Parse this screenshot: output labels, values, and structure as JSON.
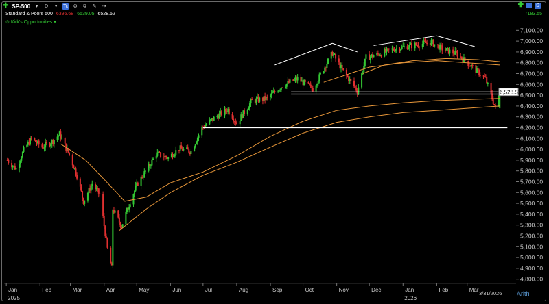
{
  "toolbar": {
    "symbol": "SP-500",
    "period": "D",
    "badge": "Tc",
    "change": "183.55"
  },
  "quote": {
    "name": "Standard & Poors 500",
    "low": "6395.68",
    "high": "6539.05",
    "close": "6528.52"
  },
  "study": "Kirk's Opportunities",
  "price_tag": "6,528.52",
  "scale_mode": "Arith",
  "colors": {
    "up": "#34c934",
    "down": "#e03030",
    "ma": "#e8973a",
    "lines": "#ffffff",
    "axis": "#cccccc"
  },
  "chart_data": {
    "type": "line",
    "title": "Standard & Poors 500",
    "series": [
      {
        "name": "SP-500",
        "style": "ohlc-candles",
        "points": [
          [
            "2025-01-02",
            5900
          ],
          [
            "2025-01-10",
            5820
          ],
          [
            "2025-01-17",
            5990
          ],
          [
            "2025-01-24",
            6100
          ],
          [
            "2025-02-03",
            6020
          ],
          [
            "2025-02-12",
            6070
          ],
          [
            "2025-02-19",
            6140
          ],
          [
            "2025-02-28",
            5950
          ],
          [
            "2025-03-07",
            5760
          ],
          [
            "2025-03-13",
            5520
          ],
          [
            "2025-03-21",
            5680
          ],
          [
            "2025-03-28",
            5580
          ],
          [
            "2025-04-04",
            5080
          ],
          [
            "2025-04-08",
            4900
          ],
          [
            "2025-04-09",
            5450
          ],
          [
            "2025-04-17",
            5290
          ],
          [
            "2025-04-25",
            5520
          ],
          [
            "2025-05-02",
            5690
          ],
          [
            "2025-05-12",
            5840
          ],
          [
            "2025-05-19",
            5960
          ],
          [
            "2025-05-30",
            5920
          ],
          [
            "2025-06-09",
            6010
          ],
          [
            "2025-06-20",
            5980
          ],
          [
            "2025-06-30",
            6200
          ],
          [
            "2025-07-10",
            6280
          ],
          [
            "2025-07-24",
            6370
          ],
          [
            "2025-08-01",
            6240
          ],
          [
            "2025-08-15",
            6450
          ],
          [
            "2025-08-29",
            6470
          ],
          [
            "2025-09-12",
            6590
          ],
          [
            "2025-09-26",
            6650
          ],
          [
            "2025-10-10",
            6560
          ],
          [
            "2025-10-28",
            6890
          ],
          [
            "2025-11-07",
            6720
          ],
          [
            "2025-11-20",
            6540
          ],
          [
            "2025-11-28",
            6850
          ],
          [
            "2025-12-10",
            6880
          ],
          [
            "2025-12-24",
            6930
          ],
          [
            "2026-01-09",
            6960
          ],
          [
            "2026-01-27",
            6990
          ],
          [
            "2026-02-06",
            6930
          ],
          [
            "2026-02-20",
            6880
          ],
          [
            "2026-03-06",
            6760
          ],
          [
            "2026-03-18",
            6650
          ],
          [
            "2026-03-27",
            6380
          ],
          [
            "2026-03-31",
            6528.52
          ]
        ]
      },
      {
        "name": "MA-fast",
        "points": [
          [
            "2025-02-20",
            6050
          ],
          [
            "2025-03-15",
            5900
          ],
          [
            "2025-04-05",
            5680
          ],
          [
            "2025-04-20",
            5520
          ],
          [
            "2025-05-10",
            5560
          ],
          [
            "2025-06-01",
            5690
          ],
          [
            "2025-07-01",
            5790
          ],
          [
            "2025-08-01",
            5940
          ],
          [
            "2025-09-01",
            6120
          ],
          [
            "2025-10-01",
            6260
          ],
          [
            "2025-11-01",
            6360
          ],
          [
            "2025-12-01",
            6400
          ],
          [
            "2026-01-01",
            6430
          ],
          [
            "2026-02-01",
            6450
          ],
          [
            "2026-03-01",
            6460
          ],
          [
            "2026-03-31",
            6470
          ]
        ]
      },
      {
        "name": "MA-slow",
        "points": [
          [
            "2025-04-15",
            5250
          ],
          [
            "2025-05-10",
            5450
          ],
          [
            "2025-06-01",
            5600
          ],
          [
            "2025-07-01",
            5760
          ],
          [
            "2025-08-01",
            5880
          ],
          [
            "2025-09-01",
            6020
          ],
          [
            "2025-10-01",
            6150
          ],
          [
            "2025-11-01",
            6250
          ],
          [
            "2025-12-01",
            6300
          ],
          [
            "2026-01-01",
            6340
          ],
          [
            "2026-02-01",
            6360
          ],
          [
            "2026-03-01",
            6380
          ],
          [
            "2026-03-31",
            6400
          ]
        ]
      },
      {
        "name": "MA-short-1",
        "points": [
          [
            "2025-10-20",
            6620
          ],
          [
            "2025-11-10",
            6690
          ],
          [
            "2025-12-01",
            6760
          ],
          [
            "2026-01-01",
            6800
          ],
          [
            "2026-02-01",
            6820
          ],
          [
            "2026-03-01",
            6800
          ],
          [
            "2026-03-31",
            6780
          ]
        ]
      },
      {
        "name": "MA-short-2",
        "points": [
          [
            "2025-11-25",
            6700
          ],
          [
            "2025-12-15",
            6780
          ],
          [
            "2026-01-10",
            6820
          ],
          [
            "2026-02-10",
            6840
          ],
          [
            "2026-03-10",
            6830
          ],
          [
            "2026-03-31",
            6810
          ]
        ]
      }
    ],
    "trendlines": [
      {
        "from": [
          "2025-09-05",
          6780
        ],
        "to": [
          "2025-10-28",
          6980
        ]
      },
      {
        "from": [
          "2025-10-28",
          6980
        ],
        "to": [
          "2025-11-20",
          6900
        ]
      },
      {
        "from": [
          "2025-12-05",
          6960
        ],
        "to": [
          "2026-02-01",
          7050
        ]
      },
      {
        "from": [
          "2026-02-01",
          7050
        ],
        "to": [
          "2026-03-08",
          6950
        ]
      }
    ],
    "hlines": [
      {
        "from": "2025-09-20",
        "to": "2026-04-07",
        "value": 6530
      },
      {
        "from": "2025-09-20",
        "to": "2026-04-07",
        "value": 6510
      },
      {
        "from": "2025-07-01",
        "to": "2026-04-07",
        "value": 6200
      }
    ],
    "yticks": [
      7100,
      7000,
      6900,
      6800,
      6700,
      6600,
      6500,
      6400,
      6300,
      6200,
      6100,
      6000,
      5900,
      5800,
      5700,
      5600,
      5500,
      5400,
      5300,
      5200,
      5100,
      5000,
      4900,
      4800
    ],
    "ytick_labels": [
      "7,100.00",
      "7,000.00",
      "6,900.00",
      "6,800.00",
      "6,700.00",
      "6,600.00",
      "6,500.00",
      "6,400.00",
      "6,300.00",
      "6,200.00",
      "6,100.00",
      "6,000.00",
      "5,900.00",
      "5,800.00",
      "5,700.00",
      "5,600.00",
      "5,500.00",
      "5,400.00",
      "5,300.00",
      "5,200.00",
      "5,100.00",
      "5,000.00",
      "4,900.00",
      "4,800.00"
    ],
    "xticks": [
      {
        "date": "2025-01-01",
        "label": "Jan"
      },
      {
        "date": "2025-02-01",
        "label": "Feb"
      },
      {
        "date": "2025-03-01",
        "label": "Mar"
      },
      {
        "date": "2025-04-01",
        "label": "Apr"
      },
      {
        "date": "2025-05-01",
        "label": "May"
      },
      {
        "date": "2025-06-01",
        "label": "Jun"
      },
      {
        "date": "2025-07-01",
        "label": "Jul"
      },
      {
        "date": "2025-08-01",
        "label": "Aug"
      },
      {
        "date": "2025-09-01",
        "label": "Sep"
      },
      {
        "date": "2025-10-01",
        "label": "Oct"
      },
      {
        "date": "2025-11-01",
        "label": "Nov"
      },
      {
        "date": "2025-12-01",
        "label": "Dec"
      },
      {
        "date": "2026-01-01",
        "label": "Jan"
      },
      {
        "date": "2026-02-01",
        "label": "Feb"
      },
      {
        "date": "2026-03-01",
        "label": "Mar"
      }
    ],
    "year_labels": [
      {
        "date": "2025-01-01",
        "label": "2025"
      },
      {
        "date": "2026-01-01",
        "label": "2026"
      }
    ],
    "last_date_label": "3/31/2026",
    "xlim": [
      "2024-12-30",
      "2026-04-15"
    ],
    "ylim": [
      4760,
      7140
    ],
    "grid": false,
    "legend": "none"
  }
}
